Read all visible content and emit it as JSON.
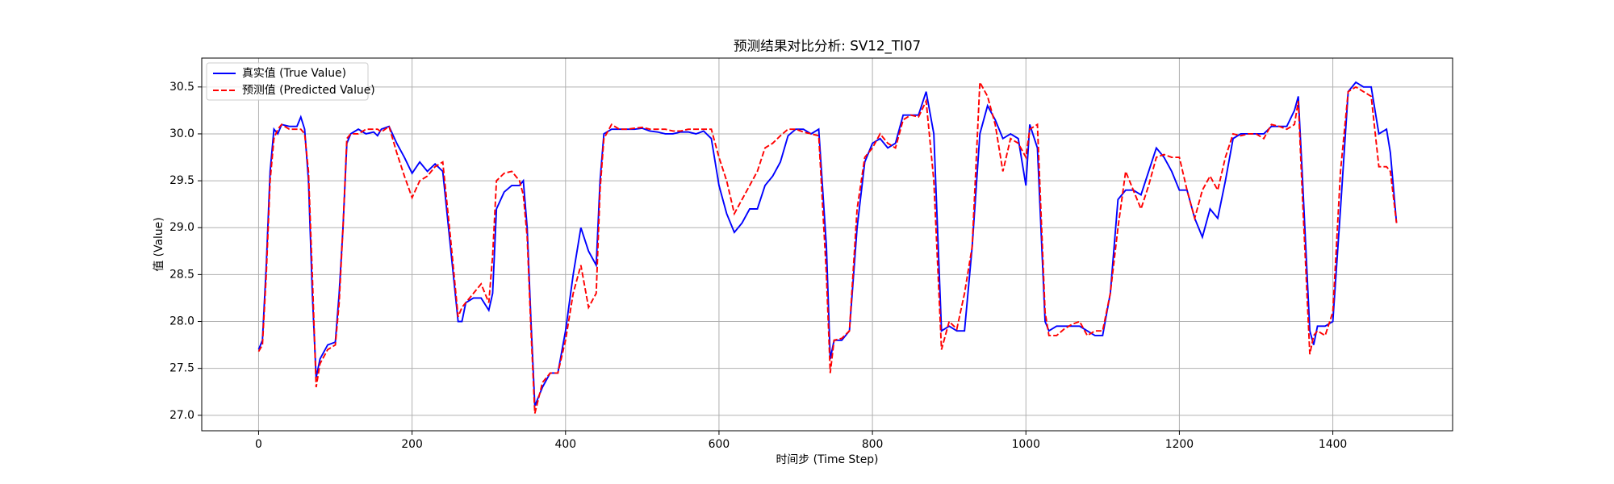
{
  "chart_data": {
    "type": "line",
    "title": "预测结果对比分析: SV12_TI07",
    "x_label": "时间步 (Time Step)",
    "y_label": "值 (Value)",
    "x": [
      0,
      5,
      10,
      15,
      20,
      25,
      30,
      40,
      50,
      55,
      60,
      65,
      70,
      75,
      80,
      90,
      100,
      105,
      110,
      115,
      120,
      130,
      140,
      150,
      155,
      160,
      170,
      180,
      190,
      200,
      210,
      220,
      230,
      240,
      250,
      260,
      265,
      270,
      280,
      290,
      300,
      305,
      310,
      320,
      330,
      340,
      345,
      350,
      355,
      360,
      370,
      380,
      390,
      400,
      410,
      420,
      430,
      440,
      445,
      450,
      460,
      470,
      480,
      490,
      500,
      510,
      520,
      530,
      540,
      550,
      560,
      570,
      580,
      590,
      600,
      610,
      620,
      630,
      640,
      650,
      660,
      670,
      680,
      690,
      700,
      710,
      720,
      730,
      740,
      745,
      750,
      760,
      770,
      780,
      790,
      800,
      810,
      820,
      830,
      840,
      850,
      860,
      870,
      880,
      890,
      900,
      910,
      920,
      930,
      940,
      950,
      960,
      970,
      980,
      990,
      1000,
      1005,
      1015,
      1025,
      1030,
      1040,
      1050,
      1060,
      1070,
      1080,
      1090,
      1100,
      1110,
      1120,
      1130,
      1140,
      1150,
      1160,
      1170,
      1180,
      1190,
      1200,
      1210,
      1220,
      1230,
      1240,
      1250,
      1260,
      1270,
      1280,
      1290,
      1300,
      1310,
      1320,
      1330,
      1340,
      1350,
      1355,
      1360,
      1370,
      1375,
      1380,
      1390,
      1400,
      1410,
      1420,
      1430,
      1440,
      1450,
      1460,
      1470,
      1475,
      1483
    ],
    "series": [
      {
        "name": "真实值 (True Value)",
        "color": "#0000ff",
        "style": "solid",
        "values": [
          27.7,
          27.8,
          28.6,
          29.6,
          30.05,
          30.0,
          30.1,
          30.08,
          30.08,
          30.18,
          30.05,
          29.5,
          28.3,
          27.4,
          27.6,
          27.75,
          27.78,
          28.3,
          29.0,
          29.9,
          30.0,
          30.05,
          30.0,
          30.02,
          29.98,
          30.05,
          30.08,
          29.9,
          29.75,
          29.58,
          29.7,
          29.6,
          29.68,
          29.6,
          28.8,
          28.0,
          28.0,
          28.2,
          28.25,
          28.25,
          28.12,
          28.3,
          29.2,
          29.38,
          29.45,
          29.45,
          29.5,
          29.0,
          28.0,
          27.1,
          27.3,
          27.45,
          27.45,
          27.9,
          28.5,
          29.0,
          28.75,
          28.6,
          29.5,
          30.0,
          30.05,
          30.05,
          30.05,
          30.05,
          30.06,
          30.03,
          30.02,
          30.0,
          30.0,
          30.02,
          30.02,
          30.0,
          30.03,
          29.95,
          29.45,
          29.15,
          28.95,
          29.05,
          29.2,
          29.2,
          29.45,
          29.55,
          29.7,
          29.98,
          30.05,
          30.05,
          30.0,
          30.05,
          28.8,
          27.6,
          27.8,
          27.8,
          27.9,
          29.0,
          29.7,
          29.9,
          29.95,
          29.85,
          29.9,
          30.2,
          30.2,
          30.2,
          30.45,
          30.0,
          27.9,
          27.95,
          27.9,
          27.9,
          28.8,
          30.0,
          30.3,
          30.15,
          29.95,
          30.0,
          29.95,
          29.45,
          30.1,
          29.85,
          28.0,
          27.9,
          27.95,
          27.95,
          27.95,
          27.95,
          27.9,
          27.85,
          27.85,
          28.3,
          29.3,
          29.4,
          29.4,
          29.35,
          29.6,
          29.85,
          29.75,
          29.6,
          29.4,
          29.4,
          29.1,
          28.9,
          29.2,
          29.1,
          29.5,
          29.95,
          30.0,
          30.0,
          30.0,
          30.0,
          30.08,
          30.08,
          30.08,
          30.25,
          30.4,
          29.6,
          27.9,
          27.75,
          27.95,
          27.95,
          28.0,
          29.2,
          30.45,
          30.55,
          30.5,
          30.5,
          30.0,
          30.05,
          29.8,
          29.05
        ]
      },
      {
        "name": "预测值 (Predicted Value)",
        "color": "#ff0000",
        "style": "dashed",
        "values": [
          27.68,
          27.75,
          28.5,
          29.5,
          29.95,
          30.05,
          30.1,
          30.05,
          30.05,
          30.05,
          30.0,
          29.6,
          28.5,
          27.3,
          27.55,
          27.7,
          27.75,
          28.2,
          29.0,
          29.95,
          30.0,
          30.0,
          30.05,
          30.05,
          30.05,
          30.02,
          30.08,
          29.8,
          29.55,
          29.32,
          29.5,
          29.55,
          29.65,
          29.7,
          28.9,
          28.05,
          28.15,
          28.2,
          28.3,
          28.4,
          28.2,
          28.7,
          29.5,
          29.58,
          29.6,
          29.5,
          29.35,
          28.9,
          27.9,
          27.02,
          27.35,
          27.45,
          27.45,
          27.8,
          28.3,
          28.6,
          28.15,
          28.3,
          29.4,
          29.95,
          30.1,
          30.05,
          30.05,
          30.06,
          30.07,
          30.05,
          30.05,
          30.05,
          30.03,
          30.03,
          30.05,
          30.05,
          30.05,
          30.05,
          29.75,
          29.5,
          29.15,
          29.3,
          29.45,
          29.6,
          29.85,
          29.9,
          29.98,
          30.05,
          30.05,
          30.02,
          30.0,
          29.98,
          28.5,
          27.45,
          27.8,
          27.82,
          27.9,
          29.2,
          29.75,
          29.85,
          30.0,
          29.9,
          29.85,
          30.15,
          30.2,
          30.18,
          30.35,
          29.5,
          27.7,
          28.0,
          27.92,
          28.3,
          28.8,
          30.55,
          30.4,
          30.1,
          29.6,
          29.95,
          29.9,
          29.75,
          30.05,
          30.1,
          28.1,
          27.85,
          27.85,
          27.92,
          27.97,
          28.0,
          27.85,
          27.9,
          27.9,
          28.3,
          29.0,
          29.6,
          29.4,
          29.2,
          29.45,
          29.75,
          29.78,
          29.75,
          29.75,
          29.4,
          29.1,
          29.4,
          29.55,
          29.4,
          29.75,
          30.0,
          29.98,
          30.0,
          30.0,
          29.95,
          30.1,
          30.08,
          30.05,
          30.1,
          30.35,
          29.4,
          27.65,
          27.85,
          27.9,
          27.85,
          28.1,
          29.6,
          30.45,
          30.5,
          30.45,
          30.4,
          29.65,
          29.65,
          29.6,
          29.05
        ]
      }
    ],
    "xlim": [
      -74.1,
      1556.1
    ],
    "ylim": [
      26.835,
      30.808
    ],
    "xticks": [
      0,
      200,
      400,
      600,
      800,
      1000,
      1200,
      1400
    ],
    "yticks": [
      {
        "value": 27,
        "label": "27.0"
      },
      27.5,
      {
        "value": 28,
        "label": "28.0"
      },
      28.5,
      {
        "value": 29,
        "label": "29.0"
      },
      29.5,
      {
        "value": 30,
        "label": "30.0"
      },
      30.5
    ],
    "grid": true,
    "legend": "upper left"
  }
}
